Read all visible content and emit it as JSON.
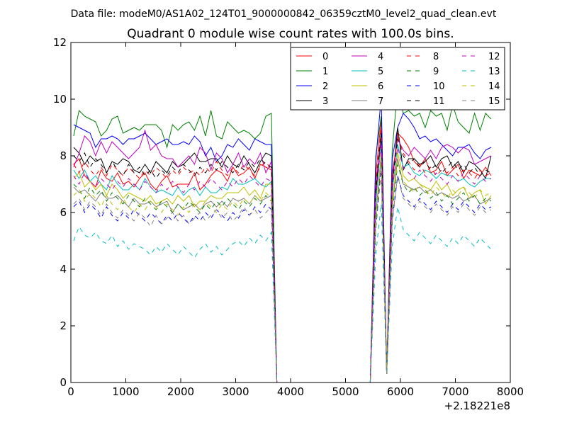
{
  "figure": {
    "suptitle": "Data file: modeM0/AS1A02_124T01_9000000842_06359cztM0_level2_quad_clean.evt",
    "x_offset_label": "+2.18221e8"
  },
  "chart_data": {
    "type": "line",
    "title": "Quadrant 0 module wise count rates with 100.0s bins.",
    "xlabel": "",
    "ylabel": "",
    "xlim": [
      0,
      8000
    ],
    "ylim": [
      0,
      12
    ],
    "x_offset": 218221000,
    "xticks": [
      0,
      1000,
      2000,
      3000,
      4000,
      5000,
      6000,
      7000,
      8000
    ],
    "yticks": [
      0,
      2,
      4,
      6,
      8,
      10,
      12
    ],
    "xtick_labels": [
      "0",
      "1000",
      "2000",
      "3000",
      "4000",
      "5000",
      "6000",
      "7000",
      "8000"
    ],
    "ytick_labels": [
      "0",
      "2",
      "4",
      "6",
      "8",
      "10",
      "12"
    ],
    "grid": false,
    "legend_position": "top-right",
    "legend_columns": 4,
    "segments": [
      {
        "x_start": 50,
        "x_end": 3650,
        "step": 100
      },
      {
        "x_start": 3750,
        "x_end": 5450,
        "step": 100
      },
      {
        "x_start": 5550,
        "x_end": 5950,
        "step": 100
      },
      {
        "x_start": 6050,
        "x_end": 7650,
        "step": 100
      }
    ],
    "series": [
      {
        "name": "0",
        "color": "#ff0000",
        "dash": "solid",
        "seg1": [
          7.7,
          7.9,
          7.3,
          7.1,
          6.9,
          7.5,
          7.2,
          7.1,
          7.4,
          7.0,
          7.1,
          6.9,
          7.2,
          7.4,
          7.0,
          6.8,
          7.1,
          7.3,
          6.9,
          7.0,
          7.0,
          7.0,
          7.4,
          6.8,
          7.0,
          7.3,
          7.5,
          7.4,
          7.1,
          7.6,
          7.3,
          7.4,
          7.6,
          7.2,
          7.7,
          7.6,
          7.5
        ],
        "seg3": [
          7.3,
          9.3,
          0.3,
          7.1,
          8.8
        ],
        "seg4": [
          8.6,
          8.3,
          7.8,
          7.6,
          7.9,
          7.4,
          7.5,
          7.8,
          7.3,
          7.5,
          7.7,
          7.2,
          7.5,
          7.4,
          7.3,
          7.6,
          7.3
        ]
      },
      {
        "name": "1",
        "color": "#008000",
        "dash": "solid",
        "seg1": [
          8.7,
          9.6,
          9.4,
          9.3,
          9.2,
          8.7,
          8.9,
          9.3,
          9.4,
          8.8,
          8.9,
          9.0,
          8.9,
          9.1,
          9.1,
          9.1,
          8.9,
          8.3,
          9.1,
          8.9,
          9.1,
          9.2,
          8.9,
          9.4,
          8.7,
          9.6,
          8.7,
          8.6,
          9.2,
          9.0,
          8.8,
          8.9,
          8.8,
          8.6,
          8.8,
          9.4,
          9.5
        ],
        "seg3": [
          8.0,
          9.4,
          0.3,
          8.2,
          10.4
        ],
        "seg4": [
          9.5,
          9.6,
          9.4,
          9.5,
          9.0,
          9.6,
          9.4,
          9.5,
          8.9,
          9.8,
          9.2,
          9.0,
          8.8,
          9.5,
          8.9,
          9.5,
          9.3
        ]
      },
      {
        "name": "2",
        "color": "#0000ff",
        "dash": "solid",
        "seg1": [
          9.1,
          9.0,
          8.9,
          8.8,
          8.3,
          8.6,
          8.6,
          8.7,
          8.6,
          8.4,
          8.6,
          8.6,
          8.7,
          8.8,
          8.6,
          8.4,
          8.5,
          8.6,
          8.4,
          8.4,
          8.5,
          8.4,
          8.7,
          8.5,
          8.0,
          8.3,
          7.8,
          8.0,
          8.4,
          8.3,
          8.6,
          8.4,
          8.2,
          8.6,
          8.5,
          8.4,
          8.4
        ],
        "seg3": [
          7.8,
          10.1,
          0.3,
          7.9,
          9.0
        ],
        "seg4": [
          9.5,
          9.3,
          9.0,
          8.6,
          8.7,
          8.5,
          8.6,
          8.4,
          8.2,
          8.0,
          8.3,
          8.3,
          8.4,
          8.1,
          7.9,
          8.2,
          8.3
        ]
      },
      {
        "name": "3",
        "color": "#000000",
        "dash": "solid",
        "seg1": [
          8.3,
          8.1,
          7.7,
          8.0,
          7.8,
          7.9,
          7.4,
          7.8,
          7.7,
          7.9,
          7.8,
          7.5,
          7.4,
          7.7,
          7.4,
          7.8,
          7.6,
          7.4,
          7.8,
          7.6,
          7.7,
          7.9,
          8.1,
          7.8,
          7.8,
          7.9,
          7.9,
          7.6,
          8.0,
          7.7,
          7.6,
          8.0,
          7.7,
          7.4,
          7.8,
          8.1,
          8.0
        ],
        "seg3": [
          6.6,
          8.9,
          0.3,
          7.0,
          9.0
        ],
        "seg4": [
          7.5,
          7.9,
          7.9,
          7.7,
          7.8,
          8.0,
          7.6,
          7.9,
          8.0,
          7.6,
          7.8,
          7.4,
          7.8,
          7.7,
          7.5,
          7.2,
          8.0
        ]
      },
      {
        "name": "4",
        "color": "#bf00bf",
        "dash": "solid",
        "seg1": [
          7.6,
          8.1,
          8.7,
          8.5,
          8.0,
          8.5,
          8.1,
          8.5,
          8.3,
          8.1,
          7.9,
          8.1,
          8.3,
          8.9,
          8.2,
          8.4,
          8.0,
          7.9,
          7.9,
          7.6,
          7.8,
          8.0,
          7.7,
          8.3,
          8.1,
          7.5,
          8.1,
          7.9,
          7.4,
          7.7,
          8.1,
          7.6,
          7.9,
          7.7,
          8.1,
          7.4,
          7.8
        ],
        "seg3": [
          7.1,
          8.4,
          0.3,
          7.4,
          8.6
        ],
        "seg4": [
          8.2,
          8.0,
          8.3,
          8.1,
          7.9,
          8.2,
          7.9,
          8.3,
          8.4,
          8.3,
          8.1,
          8.3,
          8.2,
          7.7,
          7.8,
          7.9,
          8.0
        ]
      },
      {
        "name": "5",
        "color": "#00bfbf",
        "dash": "solid",
        "seg1": [
          7.5,
          7.2,
          7.5,
          7.1,
          7.3,
          7.0,
          6.8,
          7.3,
          7.0,
          6.8,
          6.8,
          7.0,
          6.8,
          7.2,
          6.9,
          6.7,
          6.8,
          6.7,
          6.6,
          6.9,
          6.6,
          6.8,
          6.9,
          6.6,
          6.9,
          6.7,
          6.7,
          6.9,
          6.8,
          7.2,
          7.0,
          7.0,
          7.1,
          7.2,
          7.0,
          6.9,
          7.1
        ],
        "seg3": [
          6.3,
          8.6,
          0.3,
          6.7,
          8.4
        ],
        "seg4": [
          7.6,
          7.7,
          7.4,
          7.3,
          7.5,
          7.4,
          7.2,
          7.4,
          7.3,
          7.3,
          7.1,
          7.2,
          7.0,
          6.9,
          7.1,
          7.2,
          7.2
        ]
      },
      {
        "name": "6",
        "color": "#bfbf00",
        "dash": "solid",
        "seg1": [
          7.2,
          7.4,
          6.9,
          7.1,
          6.8,
          7.0,
          6.6,
          7.0,
          6.8,
          6.5,
          6.7,
          6.6,
          6.5,
          6.4,
          6.6,
          6.3,
          6.4,
          6.5,
          6.3,
          6.6,
          6.4,
          6.6,
          6.2,
          6.4,
          6.4,
          6.6,
          6.5,
          6.5,
          6.7,
          6.7,
          6.7,
          6.9,
          6.6,
          6.8,
          6.5,
          7.0,
          7.0
        ],
        "seg3": [
          5.9,
          8.1,
          0.3,
          6.3,
          8.1
        ],
        "seg4": [
          7.3,
          7.1,
          7.2,
          7.0,
          6.9,
          6.8,
          7.1,
          6.8,
          7.0,
          6.6,
          6.8,
          6.9,
          6.5,
          6.7,
          6.8,
          6.3,
          6.6
        ]
      },
      {
        "name": "7",
        "color": "#808080",
        "dash": "solid",
        "seg1": [
          6.9,
          6.7,
          6.8,
          6.6,
          6.4,
          6.7,
          6.5,
          6.5,
          6.6,
          6.4,
          6.2,
          6.5,
          6.3,
          6.3,
          6.4,
          6.2,
          6.3,
          6.4,
          6.0,
          6.3,
          6.1,
          6.2,
          6.3,
          6.1,
          6.3,
          6.4,
          6.2,
          6.4,
          6.2,
          6.5,
          6.4,
          6.5,
          6.3,
          6.6,
          6.4,
          6.5,
          6.6
        ],
        "seg3": [
          5.8,
          8.0,
          0.3,
          6.2,
          7.9
        ],
        "seg4": [
          7.0,
          6.9,
          6.8,
          6.9,
          6.7,
          6.8,
          6.6,
          6.7,
          6.6,
          6.5,
          6.6,
          6.4,
          6.5,
          6.6,
          6.3,
          6.4,
          6.5
        ]
      },
      {
        "name": "8",
        "color": "#ff0000",
        "dash": "dashed",
        "seg1": [
          7.7,
          7.4,
          7.8,
          7.5,
          7.3,
          7.6,
          7.3,
          7.7,
          7.5,
          7.3,
          7.6,
          7.4,
          7.2,
          7.5,
          7.3,
          7.6,
          7.4,
          7.2,
          7.5,
          7.3,
          7.6,
          7.4,
          7.5,
          7.3,
          7.6,
          7.4,
          7.8,
          7.5,
          7.3,
          7.6,
          7.4,
          7.7,
          7.5,
          7.3,
          7.6,
          7.8,
          7.5
        ],
        "seg3": [
          7.0,
          9.0,
          0.3,
          7.2,
          8.7
        ],
        "seg4": [
          8.1,
          7.8,
          7.5,
          7.7,
          7.4,
          7.6,
          7.3,
          7.5,
          7.4,
          7.6,
          7.3,
          7.5,
          7.4,
          7.2,
          7.5,
          7.3,
          7.4
        ]
      },
      {
        "name": "9",
        "color": "#008000",
        "dash": "dashed",
        "seg1": [
          7.0,
          6.8,
          6.5,
          6.9,
          6.6,
          6.8,
          6.4,
          6.7,
          6.5,
          6.3,
          6.6,
          6.4,
          6.2,
          6.5,
          6.3,
          6.1,
          6.4,
          6.2,
          6.0,
          6.3,
          6.1,
          6.4,
          6.2,
          6.0,
          6.3,
          6.1,
          6.4,
          6.2,
          6.5,
          6.3,
          6.1,
          6.4,
          6.2,
          6.5,
          6.3,
          6.6,
          6.4
        ],
        "seg3": [
          5.7,
          7.8,
          0.3,
          6.0,
          7.7
        ],
        "seg4": [
          7.0,
          6.7,
          6.9,
          6.6,
          6.8,
          6.5,
          6.7,
          6.4,
          6.6,
          6.3,
          6.5,
          6.7,
          6.4,
          6.6,
          6.3,
          6.5,
          6.4
        ]
      },
      {
        "name": "10",
        "color": "#0000ff",
        "dash": "dashed",
        "seg1": [
          6.2,
          6.4,
          6.0,
          6.3,
          6.1,
          5.8,
          6.2,
          5.9,
          5.7,
          6.0,
          5.8,
          6.1,
          5.9,
          5.7,
          6.0,
          5.8,
          5.6,
          5.9,
          5.7,
          6.0,
          5.8,
          5.6,
          5.9,
          5.7,
          6.0,
          5.8,
          6.1,
          5.9,
          5.7,
          6.0,
          5.8,
          6.1,
          5.9,
          6.2,
          6.0,
          6.3,
          6.1
        ],
        "seg3": [
          5.4,
          7.6,
          0.3,
          5.7,
          7.3
        ],
        "seg4": [
          6.6,
          6.4,
          6.2,
          6.5,
          6.3,
          6.1,
          6.4,
          6.2,
          6.0,
          6.3,
          6.1,
          6.4,
          6.2,
          6.0,
          6.3,
          6.1,
          6.2
        ]
      },
      {
        "name": "11",
        "color": "#000000",
        "dash": "dashed",
        "seg1": [
          8.0,
          7.8,
          8.1,
          7.6,
          7.9,
          7.7,
          7.4,
          7.8,
          7.5,
          7.3,
          7.7,
          7.4,
          7.6,
          7.3,
          7.5,
          7.2,
          7.5,
          7.3,
          7.6,
          7.4,
          7.7,
          7.5,
          7.3,
          7.6,
          7.4,
          7.7,
          7.5,
          7.8,
          7.6,
          7.4,
          7.7,
          7.5,
          7.8,
          7.6,
          7.9,
          7.7,
          7.6
        ],
        "seg3": [
          6.8,
          8.8,
          0.3,
          7.0,
          8.6
        ],
        "seg4": [
          8.0,
          7.7,
          7.9,
          7.6,
          7.8,
          7.5,
          7.7,
          7.4,
          7.6,
          7.8,
          7.5,
          7.7,
          7.4,
          7.6,
          7.3,
          7.5,
          7.4
        ]
      },
      {
        "name": "12",
        "color": "#bf00bf",
        "dash": "dashed",
        "seg1": [
          7.3,
          7.0,
          7.4,
          7.1,
          6.9,
          7.2,
          7.0,
          6.8,
          7.1,
          6.9,
          7.2,
          7.0,
          6.8,
          7.1,
          6.9,
          6.7,
          7.0,
          6.8,
          7.1,
          6.9,
          6.7,
          7.0,
          6.8,
          7.1,
          6.9,
          7.2,
          7.0,
          6.8,
          7.1,
          6.9,
          7.2,
          7.0,
          7.3,
          7.1,
          6.9,
          7.2,
          7.1
        ],
        "seg3": [
          6.5,
          8.5,
          0.3,
          6.8,
          8.3
        ],
        "seg4": [
          7.6,
          7.4,
          7.2,
          7.5,
          7.3,
          7.1,
          7.4,
          7.2,
          7.0,
          7.3,
          7.1,
          7.4,
          7.2,
          7.0,
          7.3,
          7.1,
          7.2
        ]
      },
      {
        "name": "13",
        "color": "#00bfbf",
        "dash": "dashed",
        "seg1": [
          5.0,
          5.5,
          5.2,
          5.1,
          5.3,
          5.0,
          4.9,
          5.2,
          4.8,
          5.0,
          4.7,
          4.9,
          4.8,
          4.7,
          4.5,
          4.8,
          4.6,
          4.9,
          4.7,
          4.5,
          4.8,
          4.6,
          4.4,
          4.7,
          4.9,
          4.6,
          4.8,
          4.5,
          4.7,
          4.9,
          5.0,
          4.8,
          5.1,
          4.9,
          5.2,
          5.0,
          5.3
        ],
        "seg3": [
          4.5,
          6.3,
          0.3,
          4.8,
          6.2
        ],
        "seg4": [
          5.4,
          5.2,
          5.0,
          5.3,
          5.1,
          4.9,
          5.2,
          5.0,
          4.8,
          5.1,
          4.9,
          5.2,
          5.0,
          4.8,
          5.1,
          4.9,
          4.7
        ]
      },
      {
        "name": "14",
        "color": "#bfbf00",
        "dash": "dashed",
        "seg1": [
          6.6,
          6.8,
          6.4,
          6.7,
          6.5,
          6.2,
          6.6,
          6.3,
          6.1,
          6.5,
          6.2,
          6.0,
          6.3,
          6.1,
          6.4,
          6.2,
          6.0,
          6.3,
          6.1,
          5.9,
          6.2,
          6.0,
          6.3,
          6.1,
          6.4,
          6.2,
          6.0,
          6.3,
          6.1,
          6.4,
          6.2,
          6.5,
          6.3,
          6.6,
          6.4,
          6.7,
          6.5
        ],
        "seg3": [
          5.9,
          7.9,
          0.3,
          6.1,
          7.8
        ],
        "seg4": [
          7.1,
          6.9,
          6.7,
          7.0,
          6.8,
          6.6,
          6.9,
          6.7,
          6.5,
          6.8,
          6.6,
          6.9,
          6.7,
          6.5,
          6.8,
          6.6,
          6.7
        ]
      },
      {
        "name": "15",
        "color": "#808080",
        "dash": "dashed",
        "seg1": [
          6.3,
          6.5,
          6.1,
          6.4,
          6.2,
          5.9,
          6.3,
          6.0,
          5.8,
          6.1,
          5.9,
          5.7,
          6.0,
          5.8,
          5.5,
          5.9,
          5.6,
          5.8,
          6.0,
          5.7,
          5.9,
          5.6,
          5.8,
          6.0,
          5.7,
          5.9,
          6.1,
          5.8,
          6.0,
          5.7,
          5.9,
          6.2,
          5.9,
          6.1,
          5.8,
          6.0,
          6.2
        ],
        "seg3": [
          5.4,
          7.4,
          0.3,
          5.7,
          7.3
        ],
        "seg4": [
          6.5,
          6.3,
          6.1,
          6.4,
          6.2,
          6.0,
          6.3,
          6.1,
          5.9,
          6.2,
          6.0,
          6.3,
          6.1,
          5.9,
          6.2,
          6.0,
          6.1
        ]
      }
    ]
  }
}
